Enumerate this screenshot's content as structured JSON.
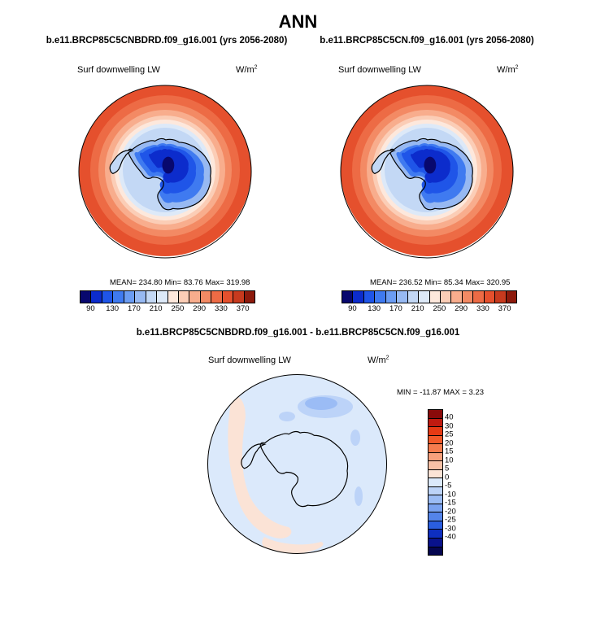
{
  "title": "ANN",
  "panels": [
    {
      "case_title": "b.e11.BRCP85C5CNBDRD.f09_g16.001 (yrs 2056-2080)",
      "variable": "Surf downwelling LW",
      "units": "W/m",
      "units_exp": "2",
      "stats": "MEAN= 234.80  Min=  83.76  Max= 319.98"
    },
    {
      "case_title": "b.e11.BRCP85C5CN.f09_g16.001 (yrs 2056-2080)",
      "variable": "Surf downwelling LW",
      "units": "W/m",
      "units_exp": "2",
      "stats": "MEAN= 236.52  Min=  85.34  Max= 320.95"
    }
  ],
  "colorbar_top": {
    "colors": [
      "#08086e",
      "#0c2ccc",
      "#1f55e8",
      "#3f7af0",
      "#6b9cf2",
      "#97b9f2",
      "#c3d8f5",
      "#dde9f8",
      "#fde8dc",
      "#fbcdb6",
      "#f8ad8d",
      "#f38a64",
      "#ed6b45",
      "#e5502d",
      "#c73a1e",
      "#8d1a0c"
    ],
    "ticks": [
      "90",
      "130",
      "170",
      "210",
      "250",
      "290",
      "330",
      "370"
    ]
  },
  "diff": {
    "title": "b.e11.BRCP85C5CNBDRD.f09_g16.001 - b.e11.BRCP85C5CN.f09_g16.001",
    "variable": "Surf downwelling LW",
    "units": "W/m",
    "units_exp": "2",
    "stats": "MIN = -11.87 MAX =   3.23"
  },
  "colorbar_diff": {
    "colors": [
      "#8a0a0a",
      "#c01a10",
      "#e63a14",
      "#f25a2a",
      "#f57c4e",
      "#f7a07c",
      "#f8c1a6",
      "#fbe3d6",
      "#dbe9fb",
      "#bcd3f8",
      "#9bbcf5",
      "#7aa2f0",
      "#5484ea",
      "#2a5ee0",
      "#0e2fc0",
      "#09128c",
      "#050650"
    ],
    "ticks": [
      "40",
      "30",
      "25",
      "20",
      "15",
      "10",
      "5",
      "0",
      "-5",
      "-10",
      "-15",
      "-20",
      "-25",
      "-30",
      "-40"
    ]
  }
}
